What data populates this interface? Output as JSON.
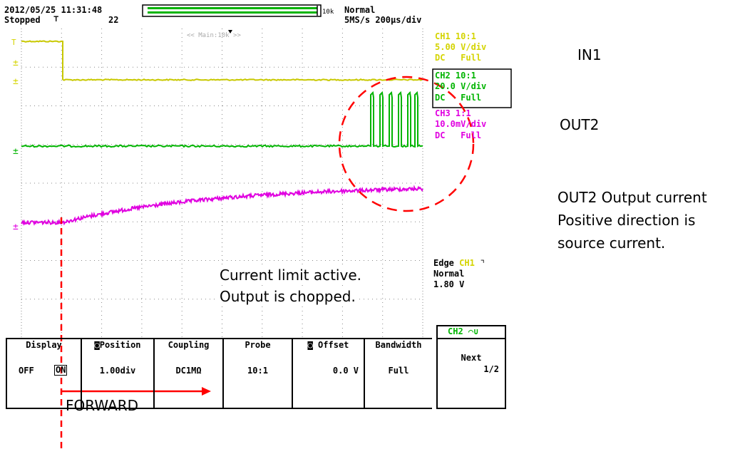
{
  "header": {
    "datetime": "2012/05/25 11:31:48",
    "record_len": "10k",
    "trigger_mode": "Normal",
    "status": "Stopped",
    "acq_count": "22",
    "sample_rate": "5MS/s 200µs/div",
    "zoom_label": "<< Main:10k >>"
  },
  "channels": [
    {
      "id": "CH1",
      "probe": "10:1",
      "scale": "5.00 V/div",
      "coupling": "DC",
      "bw": "Full",
      "color": "#d4d400"
    },
    {
      "id": "CH2",
      "probe": "10:1",
      "scale": "20.0 V/div",
      "coupling": "DC",
      "bw": "Full",
      "color": "#00b400"
    },
    {
      "id": "CH3",
      "probe": "1:1",
      "scale": "10.0mV/div",
      "coupling": "DC",
      "bw": "Full",
      "color": "#e000e0"
    }
  ],
  "trigger": {
    "type": "Edge",
    "source": "CH1",
    "mode": "Normal",
    "level": "1.80 V"
  },
  "softkeys": {
    "channel_tab": "CH2",
    "display": {
      "label": "Display",
      "off": "OFF",
      "on": "ON"
    },
    "position": {
      "label": "Position",
      "value": "1.00div"
    },
    "coupling": {
      "label": "Coupling",
      "value": "DC1MΩ"
    },
    "probe": {
      "label": "Probe",
      "value": "10:1"
    },
    "offset": {
      "label": "Offset",
      "value": "0.0 V"
    },
    "bandwidth": {
      "label": "Bandwidth",
      "value": "Full"
    },
    "next": {
      "label": "Next",
      "page": "1/2"
    }
  },
  "annotations": {
    "in1": "IN1",
    "out2": "OUT2",
    "current_line1": "OUT2 Output current",
    "current_line2": "Positive direction is",
    "current_line3": "source current.",
    "limit_line1": "Current limit active.",
    "limit_line2": "Output is chopped.",
    "forward": "FORWARD"
  },
  "colors": {
    "ch1": "#d4d400",
    "ch2": "#00b400",
    "ch3": "#e000e0",
    "annotation": "#ff0000"
  }
}
